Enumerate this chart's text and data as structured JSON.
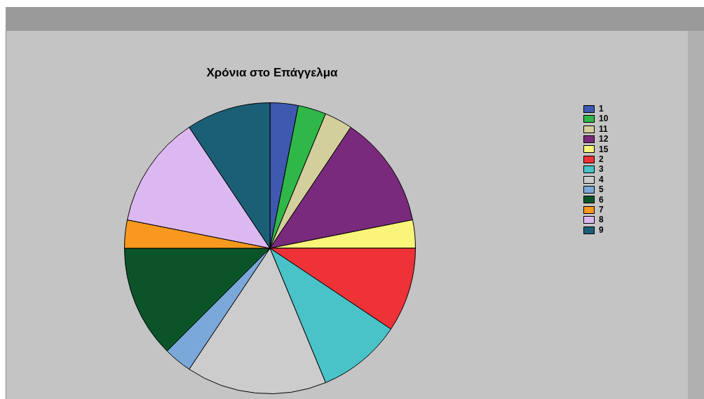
{
  "chart_data": {
    "type": "pie",
    "title": "Χρόνια στο Επάγγελμα",
    "categories": [
      "1",
      "10",
      "11",
      "12",
      "15",
      "2",
      "3",
      "4",
      "5",
      "6",
      "7",
      "8",
      "9"
    ],
    "values": [
      3.125,
      3.125,
      3.125,
      12.5,
      3.125,
      9.375,
      9.375,
      15.625,
      3.125,
      12.5,
      3.125,
      12.5,
      9.375
    ],
    "colors": [
      "#3f58b0",
      "#2fb748",
      "#d2cf9c",
      "#7a2a7c",
      "#f8f57a",
      "#ef3237",
      "#49c3c8",
      "#cccccc",
      "#7aa8d8",
      "#0b5429",
      "#f7991f",
      "#dcb8f0",
      "#1b5f77"
    ],
    "legend": "right"
  }
}
